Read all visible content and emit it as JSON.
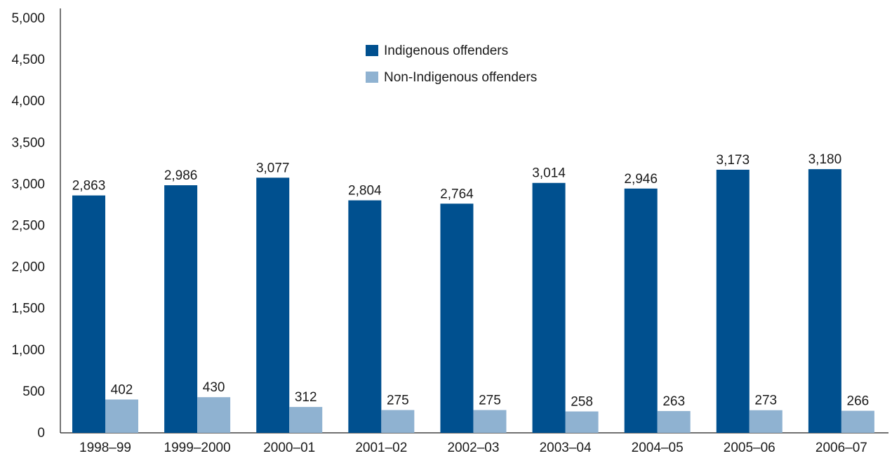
{
  "chart_data": {
    "type": "bar",
    "title": "",
    "xlabel": "",
    "ylabel": "",
    "categories": [
      "1998–99",
      "1999–2000",
      "2000–01",
      "2001–02",
      "2002–03",
      "2003–04",
      "2004–05",
      "2005–06",
      "2006–07"
    ],
    "series": [
      {
        "name": "Indigenous offenders",
        "color": "#00508F",
        "values": [
          2863,
          2986,
          3077,
          2804,
          2764,
          3014,
          2946,
          3173,
          3180
        ],
        "labels": [
          "2,863",
          "2,986",
          "3,077",
          "2,804",
          "2,764",
          "3,014",
          "2,946",
          "3,173",
          "3,180"
        ]
      },
      {
        "name": "Non-Indigenous offenders",
        "color": "#8FB2D1",
        "values": [
          402,
          430,
          312,
          275,
          275,
          258,
          263,
          273,
          266
        ],
        "labels": [
          "402",
          "430",
          "312",
          "275",
          "275",
          "258",
          "263",
          "273",
          "266"
        ]
      }
    ],
    "ylim": [
      0,
      5000
    ],
    "yticks": [
      0,
      500,
      1000,
      1500,
      2000,
      2500,
      3000,
      3500,
      4000,
      4500,
      5000
    ],
    "ytick_labels": [
      "0",
      "500",
      "1,000",
      "1,500",
      "2,000",
      "2,500",
      "3,000",
      "3,500",
      "4,000",
      "4,500",
      "5,000"
    ],
    "grid": false,
    "legend_position": "top-center"
  }
}
